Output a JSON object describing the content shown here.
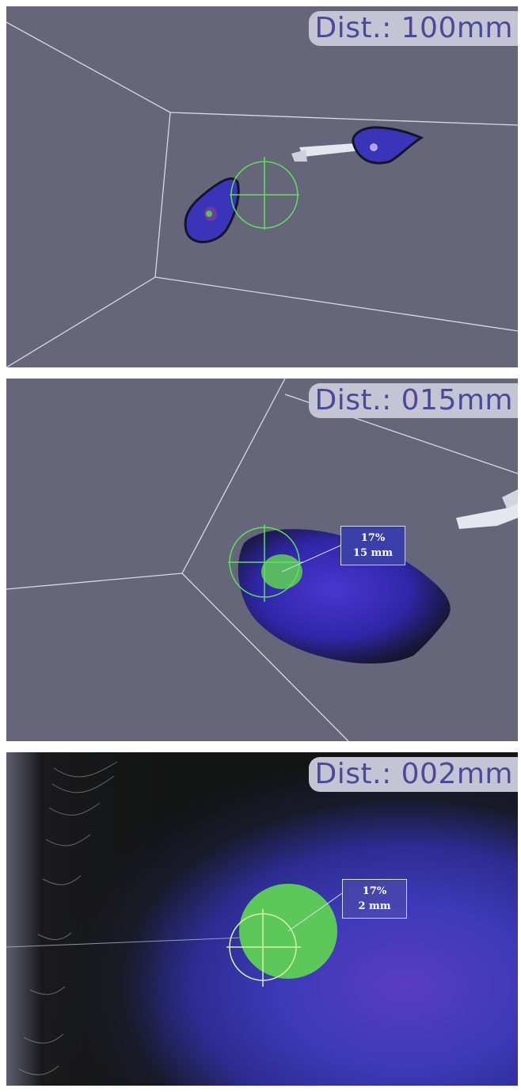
{
  "panels": [
    {
      "distance_label": "Dist.: 100mm"
    },
    {
      "distance_label": "Dist.: 015mm",
      "readout": {
        "percent": "17%",
        "distance": "15 mm"
      }
    },
    {
      "distance_label": "Dist.: 002mm",
      "readout": {
        "percent": "17%",
        "distance": "2 mm"
      }
    }
  ],
  "colors": {
    "background": "#66667a",
    "target_blue": "#3a34b8",
    "cursor_green": "#5fe05a",
    "label_bg": "#c4c4d4",
    "label_text": "#4a4a9a"
  }
}
